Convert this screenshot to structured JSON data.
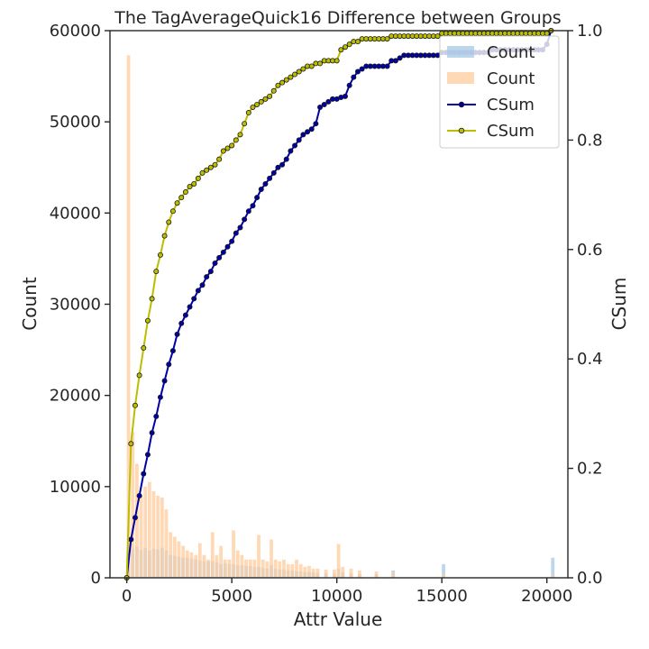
{
  "chart_data": {
    "type": "bar",
    "title": "The TagAverageQuick16 Difference between Groups",
    "xlabel": "Attr Value",
    "ylabel": "Count",
    "y2label": "CSum",
    "xlim": [
      -800,
      21000
    ],
    "ylim": [
      0,
      60000
    ],
    "y2lim": [
      0,
      1
    ],
    "x_ticks": [
      0,
      5000,
      10000,
      15000,
      20000
    ],
    "y_ticks": [
      0,
      10000,
      20000,
      30000,
      40000,
      50000,
      60000
    ],
    "y2_ticks": [
      0.0,
      0.2,
      0.4,
      0.6,
      0.8,
      1.0
    ],
    "y2_tick_labels": [
      "0.0",
      "0.2",
      "0.4",
      "0.6",
      "0.8",
      "1.0"
    ],
    "legend_position": "top-right",
    "colors": {
      "count_blue": "#a6c8e6",
      "count_orange": "#ffcc9e",
      "csum_blue": "#0000a8",
      "csum_yellow": "#bdbd00"
    },
    "histogram_bin_width": 200,
    "series": [
      {
        "name": "Count",
        "kind": "bar",
        "color": "#a6c8e6",
        "x": [
          0,
          200,
          400,
          600,
          800,
          1000,
          1200,
          1400,
          1600,
          1800,
          2000,
          2200,
          2400,
          2600,
          2800,
          3000,
          3200,
          3400,
          3600,
          3800,
          4000,
          4200,
          4400,
          4600,
          4800,
          5000,
          5200,
          5400,
          5600,
          5800,
          6000,
          6200,
          6400,
          6600,
          6800,
          7000,
          7200,
          7400,
          7600,
          7800,
          8000,
          8200,
          8400,
          8600,
          8800,
          9000,
          9400,
          9800,
          10000,
          10200,
          10600,
          11000,
          11800,
          12600,
          15000,
          20200
        ],
        "values": [
          3500,
          3200,
          3400,
          3100,
          3300,
          3000,
          3200,
          3100,
          3300,
          3000,
          2500,
          2400,
          2300,
          2200,
          2200,
          2100,
          2000,
          1900,
          1800,
          1800,
          1800,
          1700,
          1500,
          1600,
          1500,
          1500,
          1400,
          1400,
          1300,
          1300,
          1200,
          1200,
          1100,
          1000,
          1400,
          1000,
          900,
          900,
          800,
          800,
          700,
          700,
          650,
          600,
          600,
          550,
          500,
          450,
          1000,
          600,
          500,
          400,
          400,
          800,
          1500,
          2200
        ]
      },
      {
        "name": "Count",
        "kind": "bar",
        "color": "#ffcc9e",
        "x": [
          0,
          200,
          400,
          600,
          800,
          1000,
          1200,
          1400,
          1600,
          1800,
          2000,
          2200,
          2400,
          2600,
          2800,
          3000,
          3200,
          3400,
          3600,
          3800,
          4000,
          4200,
          4400,
          4600,
          4800,
          5000,
          5200,
          5400,
          5600,
          5800,
          6000,
          6200,
          6400,
          6600,
          6800,
          7000,
          7200,
          7400,
          7600,
          7800,
          8000,
          8200,
          8400,
          8600,
          8800,
          9000,
          9400,
          9800,
          10000,
          10200,
          10600,
          11000,
          11800,
          12600,
          15000,
          20200
        ],
        "values": [
          57300,
          16000,
          12500,
          9000,
          10000,
          10500,
          9500,
          9000,
          8800,
          7500,
          5000,
          4500,
          4000,
          3500,
          3000,
          2800,
          2500,
          3800,
          2500,
          2000,
          5000,
          2500,
          3500,
          2000,
          2000,
          5200,
          3000,
          2500,
          2000,
          2000,
          2000,
          4700,
          2000,
          1800,
          4200,
          2000,
          1800,
          2000,
          1500,
          1500,
          2000,
          1500,
          1200,
          1300,
          1000,
          1000,
          900,
          900,
          3700,
          1200,
          1000,
          800,
          700,
          600,
          400,
          300
        ]
      },
      {
        "name": "CSum",
        "kind": "line",
        "color": "#0000a8",
        "marker_fill": "#0000a8",
        "x": [
          0,
          200,
          400,
          600,
          800,
          1000,
          1200,
          1400,
          1600,
          1800,
          2000,
          2200,
          2400,
          2600,
          2800,
          3000,
          3200,
          3400,
          3600,
          3800,
          4000,
          4200,
          4400,
          4600,
          4800,
          5000,
          5200,
          5400,
          5600,
          5800,
          6000,
          6200,
          6400,
          6600,
          6800,
          7000,
          7200,
          7400,
          7600,
          7800,
          8000,
          8200,
          8400,
          8600,
          8800,
          9000,
          9200,
          9400,
          9600,
          9800,
          10000,
          10200,
          10400,
          10600,
          10800,
          11000,
          11200,
          11400,
          11600,
          11800,
          12000,
          12200,
          12400,
          12600,
          12800,
          13000,
          13200,
          13400,
          13600,
          13800,
          14000,
          14200,
          14400,
          14600,
          14800,
          15000,
          15200,
          15400,
          15600,
          15800,
          16000,
          16200,
          16400,
          16600,
          16800,
          17000,
          17200,
          17400,
          17600,
          17800,
          18000,
          18200,
          18400,
          18600,
          18800,
          19000,
          19200,
          19400,
          19600,
          19800,
          20000,
          20200
        ],
        "values": [
          0.0,
          0.07,
          0.11,
          0.15,
          0.19,
          0.225,
          0.265,
          0.295,
          0.33,
          0.36,
          0.39,
          0.415,
          0.445,
          0.465,
          0.48,
          0.495,
          0.51,
          0.525,
          0.535,
          0.55,
          0.56,
          0.575,
          0.585,
          0.595,
          0.605,
          0.615,
          0.63,
          0.64,
          0.655,
          0.67,
          0.68,
          0.695,
          0.71,
          0.72,
          0.73,
          0.74,
          0.75,
          0.755,
          0.765,
          0.78,
          0.79,
          0.8,
          0.81,
          0.815,
          0.82,
          0.83,
          0.86,
          0.865,
          0.87,
          0.875,
          0.875,
          0.878,
          0.88,
          0.9,
          0.915,
          0.925,
          0.93,
          0.935,
          0.935,
          0.935,
          0.935,
          0.935,
          0.935,
          0.945,
          0.945,
          0.95,
          0.955,
          0.955,
          0.955,
          0.955,
          0.955,
          0.955,
          0.955,
          0.955,
          0.955,
          0.96,
          0.96,
          0.96,
          0.96,
          0.96,
          0.96,
          0.96,
          0.96,
          0.96,
          0.96,
          0.96,
          0.96,
          0.965,
          0.965,
          0.965,
          0.965,
          0.965,
          0.965,
          0.965,
          0.965,
          0.965,
          0.965,
          0.965,
          0.965,
          0.965,
          0.975,
          1.0
        ]
      },
      {
        "name": "CSum",
        "kind": "line",
        "color": "#bdbd00",
        "marker_fill": "#bdbd00",
        "x": [
          0,
          200,
          400,
          600,
          800,
          1000,
          1200,
          1400,
          1600,
          1800,
          2000,
          2200,
          2400,
          2600,
          2800,
          3000,
          3200,
          3400,
          3600,
          3800,
          4000,
          4200,
          4400,
          4600,
          4800,
          5000,
          5200,
          5400,
          5600,
          5800,
          6000,
          6200,
          6400,
          6600,
          6800,
          7000,
          7200,
          7400,
          7600,
          7800,
          8000,
          8200,
          8400,
          8600,
          8800,
          9000,
          9200,
          9400,
          9600,
          9800,
          10000,
          10200,
          10400,
          10600,
          10800,
          11000,
          11200,
          11400,
          11600,
          11800,
          12000,
          12200,
          12400,
          12600,
          12800,
          13000,
          13200,
          13400,
          13600,
          13800,
          14000,
          14200,
          14400,
          14600,
          14800,
          15000,
          15200,
          15400,
          15600,
          15800,
          16000,
          16200,
          16400,
          16600,
          16800,
          17000,
          17200,
          17400,
          17600,
          17800,
          18000,
          18200,
          18400,
          18600,
          18800,
          19000,
          19200,
          19400,
          19600,
          19800,
          20000,
          20200
        ],
        "values": [
          0.0,
          0.245,
          0.315,
          0.37,
          0.42,
          0.47,
          0.51,
          0.56,
          0.59,
          0.625,
          0.65,
          0.67,
          0.685,
          0.695,
          0.705,
          0.715,
          0.72,
          0.73,
          0.74,
          0.745,
          0.75,
          0.755,
          0.765,
          0.78,
          0.785,
          0.79,
          0.8,
          0.81,
          0.83,
          0.85,
          0.86,
          0.865,
          0.87,
          0.875,
          0.88,
          0.89,
          0.9,
          0.905,
          0.91,
          0.915,
          0.92,
          0.925,
          0.93,
          0.935,
          0.935,
          0.94,
          0.94,
          0.945,
          0.945,
          0.945,
          0.945,
          0.965,
          0.97,
          0.975,
          0.98,
          0.98,
          0.985,
          0.985,
          0.985,
          0.985,
          0.985,
          0.985,
          0.985,
          0.99,
          0.99,
          0.99,
          0.99,
          0.99,
          0.99,
          0.99,
          0.99,
          0.99,
          0.99,
          0.99,
          0.99,
          0.995,
          0.995,
          0.995,
          0.995,
          0.995,
          0.995,
          0.995,
          0.995,
          0.995,
          0.995,
          0.995,
          0.995,
          0.995,
          0.995,
          0.995,
          0.995,
          0.995,
          0.995,
          0.995,
          0.995,
          0.995,
          0.995,
          0.995,
          0.995,
          0.995,
          0.995,
          1.0
        ]
      }
    ]
  }
}
